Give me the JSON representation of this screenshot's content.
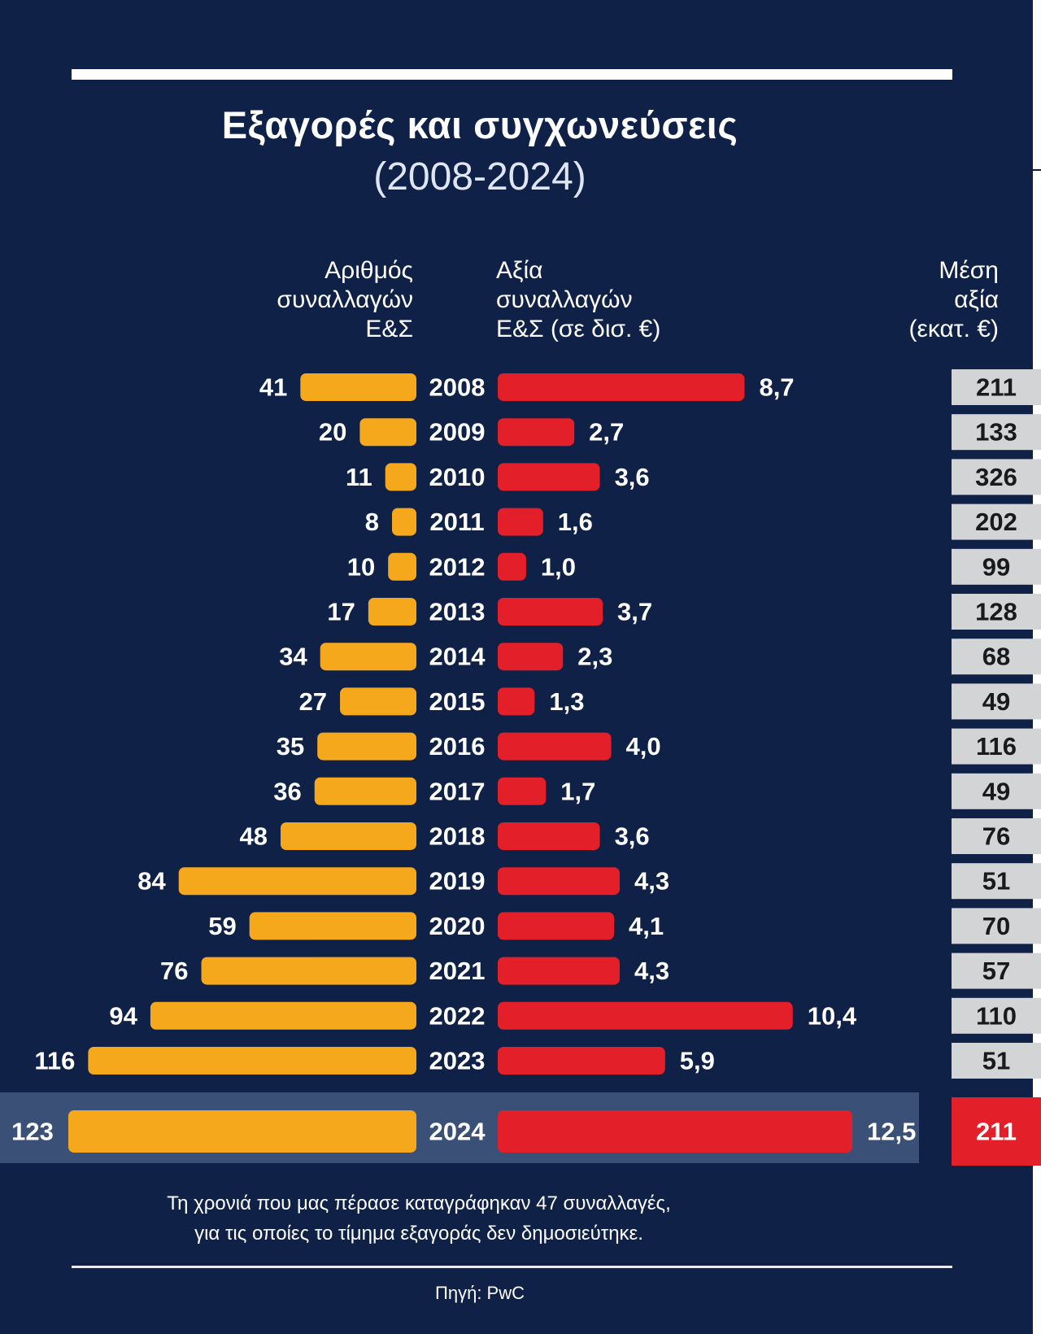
{
  "colors": {
    "background": "#0f2147",
    "count_bar": "#f5a81c",
    "value_bar": "#e3202a",
    "avg_box": "#d3d4d6",
    "avg_box_highlight": "#e3202a",
    "highlight_band": "#3b5077"
  },
  "header": {
    "title": "Εξαγορές και συγχωνεύσεις",
    "subtitle": "(2008-2024)"
  },
  "columns": {
    "count": "Αριθμός\nσυναλλαγών\nΕ&Σ",
    "value": "Αξία\nσυναλλαγών\nΕ&Σ (σε δισ. €)",
    "average": "Μέση\nαξία\n(εκατ. €)"
  },
  "chart_data": {
    "type": "bar",
    "title": "Εξαγορές και συγχωνεύσεις (2008-2024)",
    "categories": [
      "2008",
      "2009",
      "2010",
      "2011",
      "2012",
      "2013",
      "2014",
      "2015",
      "2016",
      "2017",
      "2018",
      "2019",
      "2020",
      "2021",
      "2022",
      "2023",
      "2024"
    ],
    "series": [
      {
        "name": "Αριθμός συναλλαγών Ε&Σ",
        "values": [
          41,
          20,
          11,
          8,
          10,
          17,
          34,
          27,
          35,
          36,
          48,
          84,
          59,
          76,
          94,
          116,
          123
        ],
        "labels": [
          "41",
          "20",
          "11",
          "8",
          "10",
          "17",
          "34",
          "27",
          "35",
          "36",
          "48",
          "84",
          "59",
          "76",
          "94",
          "116",
          "123"
        ]
      },
      {
        "name": "Αξία συναλλαγών Ε&Σ (σε δισ. €)",
        "values": [
          8.7,
          2.7,
          3.6,
          1.6,
          1.0,
          3.7,
          2.3,
          1.3,
          4.0,
          1.7,
          3.6,
          4.3,
          4.1,
          4.3,
          10.4,
          5.9,
          12.5
        ],
        "labels": [
          "8,7",
          "2,7",
          "3,6",
          "1,6",
          "1,0",
          "3,7",
          "2,3",
          "1,3",
          "4,0",
          "1,7",
          "3,6",
          "4,3",
          "4,1",
          "4,3",
          "10,4",
          "5,9",
          "12,5"
        ]
      },
      {
        "name": "Μέση αξία (εκατ. €)",
        "values": [
          211,
          133,
          326,
          202,
          99,
          128,
          68,
          49,
          116,
          49,
          76,
          51,
          70,
          57,
          110,
          51,
          211
        ],
        "labels": [
          "211",
          "133",
          "326",
          "202",
          "99",
          "128",
          "68",
          "49",
          "116",
          "49",
          "76",
          "51",
          "70",
          "57",
          "110",
          "51",
          "211"
        ]
      }
    ],
    "highlight_category": "2024"
  },
  "footnote": {
    "line1": "Τη χρονιά που μας πέρασε καταγράφηκαν 47 συναλλαγές,",
    "line2": "για τις οποίες το τίμημα εξαγοράς δεν δημοσιεύτηκε."
  },
  "source": "Πηγή: PwC"
}
